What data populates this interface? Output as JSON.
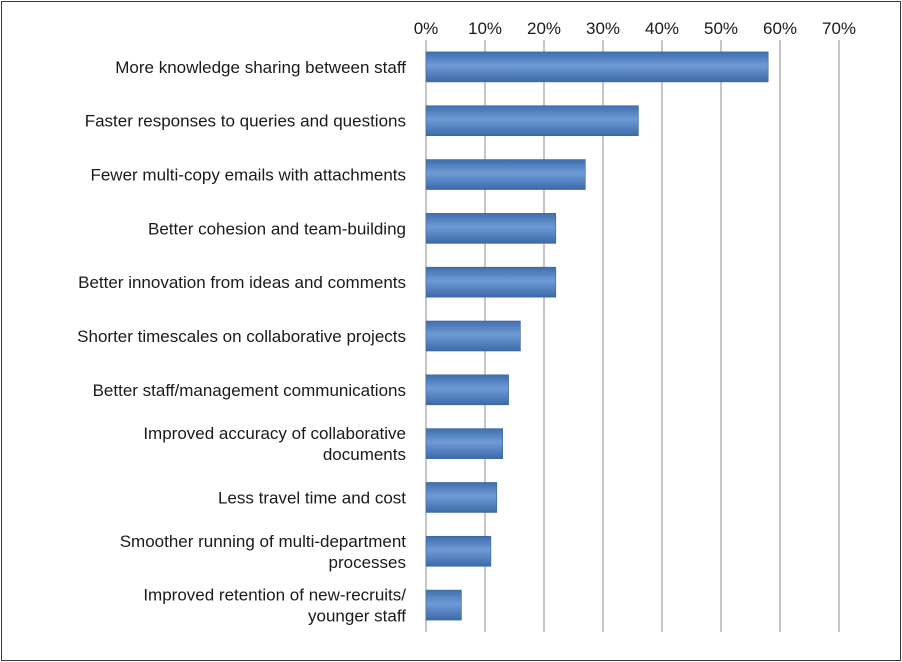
{
  "chart_data": {
    "type": "bar",
    "orientation": "horizontal",
    "title": "",
    "xlabel": "",
    "ylabel": "",
    "xlim": [
      0,
      70
    ],
    "x_ticks": [
      "0%",
      "10%",
      "20%",
      "30%",
      "40%",
      "50%",
      "60%",
      "70%"
    ],
    "x_axis_position": "top",
    "grid": "vertical",
    "legend": "none",
    "bar_color": "#4a7ebb",
    "categories": [
      [
        "More knowledge sharing between staff"
      ],
      [
        "Faster responses to queries and questions"
      ],
      [
        "Fewer multi-copy emails with attachments"
      ],
      [
        "Better cohesion and team-building"
      ],
      [
        "Better innovation from ideas and comments"
      ],
      [
        "Shorter timescales on collaborative projects"
      ],
      [
        "Better  staff/management communications"
      ],
      [
        "Improved accuracy of collaborative",
        "documents"
      ],
      [
        "Less travel time and cost"
      ],
      [
        "Smoother running of multi-department",
        "processes"
      ],
      [
        "Improved retention of new-recruits/",
        "younger staff "
      ]
    ],
    "values": [
      58,
      36,
      27,
      22,
      22,
      16,
      14,
      13,
      12,
      11,
      6
    ]
  }
}
